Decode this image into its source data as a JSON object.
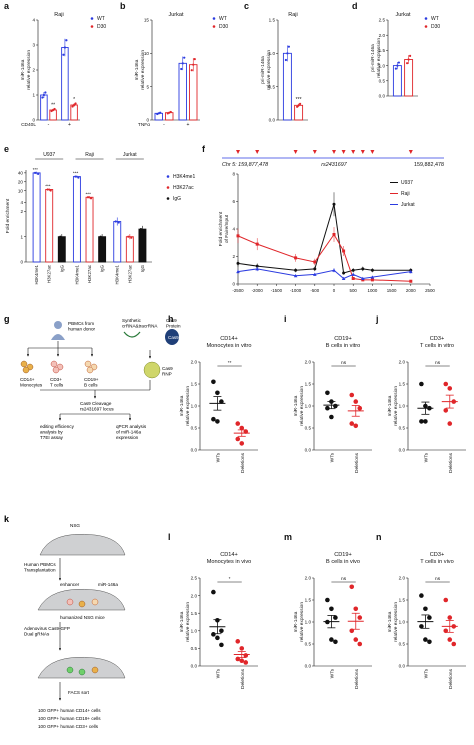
{
  "colors": {
    "wt": "#2b3be0",
    "d30": "#e0262a",
    "u937": "#111111",
    "raji": "#e0262a",
    "jurkat": "#2b3be0",
    "black": "#111111",
    "red": "#e0262a",
    "blue": "#2b3be0",
    "gray": "#666666",
    "orange": "#e8a020"
  },
  "letters": {
    "a": "a",
    "b": "b",
    "c": "c",
    "d": "d",
    "e": "e",
    "f": "f",
    "g": "g",
    "h": "h",
    "i": "i",
    "j": "j",
    "k": "k",
    "l": "l",
    "m": "m",
    "n": "n"
  },
  "legend": {
    "wt": "WT",
    "d30": "D30",
    "h3k4": "H3K4me1",
    "h3k27": "H3K27ac",
    "igg": "IgG",
    "u937": "U937",
    "raji": "Raji",
    "jurkat": "Jurkat"
  },
  "schematic_g": {
    "pbmcs": "PBMCs from\nhuman donor",
    "synthetic": "Synthetic\ncrRNA&tracrRNA",
    "cas9_protein": "Cas9\nProtein",
    "cas9": "Cas9",
    "rnp": "Cas9\nRNP",
    "monocytes": "CD14+\nMonocytes",
    "tcells": "CD3+\nT cells",
    "bcells": "CD19+\nB cells",
    "cleavage": "Cas9 Cleavage\nrs2431697 locus",
    "editing": "editing efficiency\nanalysis by\nT7EI assay",
    "qpcr": "qPCR analysis\nof miR-146a\nexpression"
  },
  "schematic_k": {
    "nsg": "NSG",
    "transplant": "Human PBMCs\nTransplantation",
    "enhancer": "enhancer",
    "mir": "miR-146a",
    "humanized": "humanized NSG mice",
    "adeno": "Adenovirus Cas9-GFP\nDual gRNAs",
    "facs": "FACS sort",
    "out1": "100 GFP+ human CD14+ cells",
    "out2": "100 GFP+ human CD19+ cells",
    "out3": "100 GFP+ human CD3+ cells"
  },
  "chart_data": [
    {
      "panel": "a",
      "type": "bar",
      "title": "Raji",
      "ylabel": "miR-146a\nrelative expression",
      "ylim": [
        0,
        4
      ],
      "yticks": [
        0,
        1,
        2,
        3,
        4
      ],
      "xlabel": "CD40L",
      "categories": [
        "-",
        "+"
      ],
      "series": [
        {
          "name": "WT",
          "values": [
            1.0,
            2.9
          ]
        },
        {
          "name": "D30",
          "values": [
            0.4,
            0.6
          ]
        }
      ],
      "significance": [
        "**",
        "*"
      ]
    },
    {
      "panel": "b",
      "type": "bar",
      "title": "Jurkat",
      "ylabel": "miR-146a\nrelative expression",
      "ylim": [
        0,
        15
      ],
      "yticks": [
        0,
        5,
        10,
        15
      ],
      "xlabel": "TNFα",
      "categories": [
        "-",
        "+"
      ],
      "series": [
        {
          "name": "WT",
          "values": [
            1.0,
            8.5
          ]
        },
        {
          "name": "D30",
          "values": [
            1.1,
            8.3
          ]
        }
      ]
    },
    {
      "panel": "c",
      "type": "bar",
      "title": "Raji",
      "ylabel": "pri-miR-146a\nrelative expression",
      "ylim": [
        0,
        1.5
      ],
      "yticks": [
        0.0,
        0.5,
        1.0,
        1.5
      ],
      "series": [
        {
          "name": "WT",
          "values": [
            1.0
          ]
        },
        {
          "name": "D30",
          "values": [
            0.22
          ]
        }
      ],
      "significance": [
        "***"
      ]
    },
    {
      "panel": "d",
      "type": "bar",
      "title": "Jurkat",
      "ylabel": "pri-miR-146a\nrelative expression",
      "ylim": [
        0,
        2.5
      ],
      "yticks": [
        0.0,
        0.5,
        1.0,
        1.5,
        2.0,
        2.5
      ],
      "series": [
        {
          "name": "WT",
          "values": [
            1.0
          ]
        },
        {
          "name": "D30",
          "values": [
            1.2
          ]
        }
      ]
    },
    {
      "panel": "e",
      "type": "bar",
      "ylabel": "Fold enrichment",
      "ylim": [
        0,
        50
      ],
      "yticks": [
        0,
        1,
        2,
        4,
        10,
        20,
        40
      ],
      "groups": [
        "U937",
        "Raji",
        "Jurkat"
      ],
      "categories": [
        "H3K4me1",
        "H3K27ac",
        "IgG",
        "H3K4me1",
        "H3K27ac",
        "IgG",
        "H3K4me1",
        "H3K27ac",
        "IgG"
      ],
      "values": [
        40,
        11,
        1,
        30,
        6,
        1,
        1.6,
        1.0,
        1.3
      ],
      "significance": [
        "***",
        "***",
        "",
        "***",
        "***",
        "",
        "",
        "",
        ""
      ]
    },
    {
      "panel": "f",
      "type": "line",
      "ylabel": "Fold enrichment\nof Faire/Input",
      "ylim": [
        0,
        8
      ],
      "yticks": [
        0,
        2,
        4,
        6,
        8
      ],
      "chr_labels": [
        "Chr 5: 159,877,478",
        "rs2431697",
        "159,882,478"
      ],
      "x": [
        -2500,
        -2000,
        -1000,
        -500,
        0,
        250,
        500,
        750,
        1000,
        2000
      ],
      "xticks": [
        -2500,
        -2000,
        -1500,
        -1000,
        -500,
        0,
        500,
        1000,
        1500,
        2000,
        2500
      ],
      "series": [
        {
          "name": "U937",
          "values": [
            1.5,
            1.3,
            1.0,
            1.1,
            5.8,
            0.8,
            1.0,
            1.1,
            1.0,
            1.0
          ]
        },
        {
          "name": "Raji",
          "values": [
            3.5,
            2.9,
            1.9,
            1.6,
            3.6,
            2.4,
            0.4,
            0.3,
            0.3,
            0.2
          ]
        },
        {
          "name": "Jurkat",
          "values": [
            0.9,
            1.1,
            0.6,
            0.7,
            1.0,
            0.4,
            0.7,
            0.4,
            0.5,
            0.9
          ]
        }
      ]
    },
    {
      "panel": "h",
      "type": "scatter",
      "title": "CD14+\nMonocytes in vitro",
      "ylabel": "miR-146a\nrelative expression",
      "ylim": [
        0,
        2.0
      ],
      "yticks": [
        0.0,
        0.5,
        1.0,
        1.5,
        2.0
      ],
      "categories": [
        "WTs",
        "Deletions"
      ],
      "sig": "**",
      "series": [
        {
          "name": "WTs",
          "values": [
            1.55,
            1.3,
            1.1,
            0.7,
            0.65
          ]
        },
        {
          "name": "Deletions",
          "values": [
            0.6,
            0.5,
            0.42,
            0.25,
            0.15
          ]
        }
      ]
    },
    {
      "panel": "i",
      "type": "scatter",
      "title": "CD19+\nB cells in vitro",
      "ylabel": "miR-146a\nrelative expression",
      "ylim": [
        0,
        2.0
      ],
      "yticks": [
        0.0,
        0.5,
        1.0,
        1.5,
        2.0
      ],
      "categories": [
        "WTs",
        "Deletions"
      ],
      "sig": "ns",
      "series": [
        {
          "name": "WTs",
          "values": [
            1.3,
            1.1,
            1.0,
            0.95,
            0.75
          ]
        },
        {
          "name": "Deletions",
          "values": [
            1.25,
            1.1,
            0.95,
            0.6,
            0.55
          ]
        }
      ]
    },
    {
      "panel": "j",
      "type": "scatter",
      "title": "CD3+\nT cells in vitro",
      "ylabel": "miR-146a\nrelative expression",
      "ylim": [
        0,
        2.0
      ],
      "yticks": [
        0.0,
        0.5,
        1.0,
        1.5,
        2.0
      ],
      "categories": [
        "WTs",
        "Deletions"
      ],
      "sig": "ns",
      "series": [
        {
          "name": "WTs",
          "values": [
            1.5,
            1.0,
            0.95,
            0.65,
            0.65
          ]
        },
        {
          "name": "Deletions",
          "values": [
            1.5,
            1.4,
            1.1,
            0.9,
            0.6
          ]
        }
      ]
    },
    {
      "panel": "l",
      "type": "scatter",
      "title": "CD14+\nMonocytes in vivo",
      "ylabel": "miR-146a\nrelative expression",
      "ylim": [
        0,
        2.5
      ],
      "yticks": [
        0.0,
        0.5,
        1.0,
        1.5,
        2.0,
        2.5
      ],
      "categories": [
        "WTs",
        "Deletions"
      ],
      "sig": "*",
      "series": [
        {
          "name": "WTs",
          "values": [
            2.1,
            1.3,
            1.0,
            0.9,
            0.8,
            0.6
          ]
        },
        {
          "name": "Deletions",
          "values": [
            0.7,
            0.5,
            0.3,
            0.2,
            0.15,
            0.1
          ]
        }
      ]
    },
    {
      "panel": "m",
      "type": "scatter",
      "title": "CD19+\nB cells in vivo",
      "ylabel": "miR-146a\nrelative expression",
      "ylim": [
        0,
        2.0
      ],
      "yticks": [
        0.0,
        0.5,
        1.0,
        1.5,
        2.0
      ],
      "categories": [
        "WTs",
        "Deletions"
      ],
      "sig": "ns",
      "series": [
        {
          "name": "WTs",
          "values": [
            1.5,
            1.3,
            1.1,
            1.0,
            0.6,
            0.55
          ]
        },
        {
          "name": "Deletions",
          "values": [
            1.8,
            1.3,
            1.1,
            0.8,
            0.6,
            0.5
          ]
        }
      ]
    },
    {
      "panel": "n",
      "type": "scatter",
      "title": "CD3+\nT cells in vivo",
      "ylabel": "miR-146a\nrelative expression",
      "ylim": [
        0,
        2.0
      ],
      "yticks": [
        0.0,
        0.5,
        1.0,
        1.5,
        2.0
      ],
      "categories": [
        "WTs",
        "Deletions"
      ],
      "sig": "ns",
      "series": [
        {
          "name": "WTs",
          "values": [
            1.6,
            1.3,
            1.1,
            0.9,
            0.6,
            0.55
          ]
        },
        {
          "name": "Deletions",
          "values": [
            1.5,
            1.1,
            0.9,
            0.8,
            0.6,
            0.5
          ]
        }
      ]
    }
  ]
}
